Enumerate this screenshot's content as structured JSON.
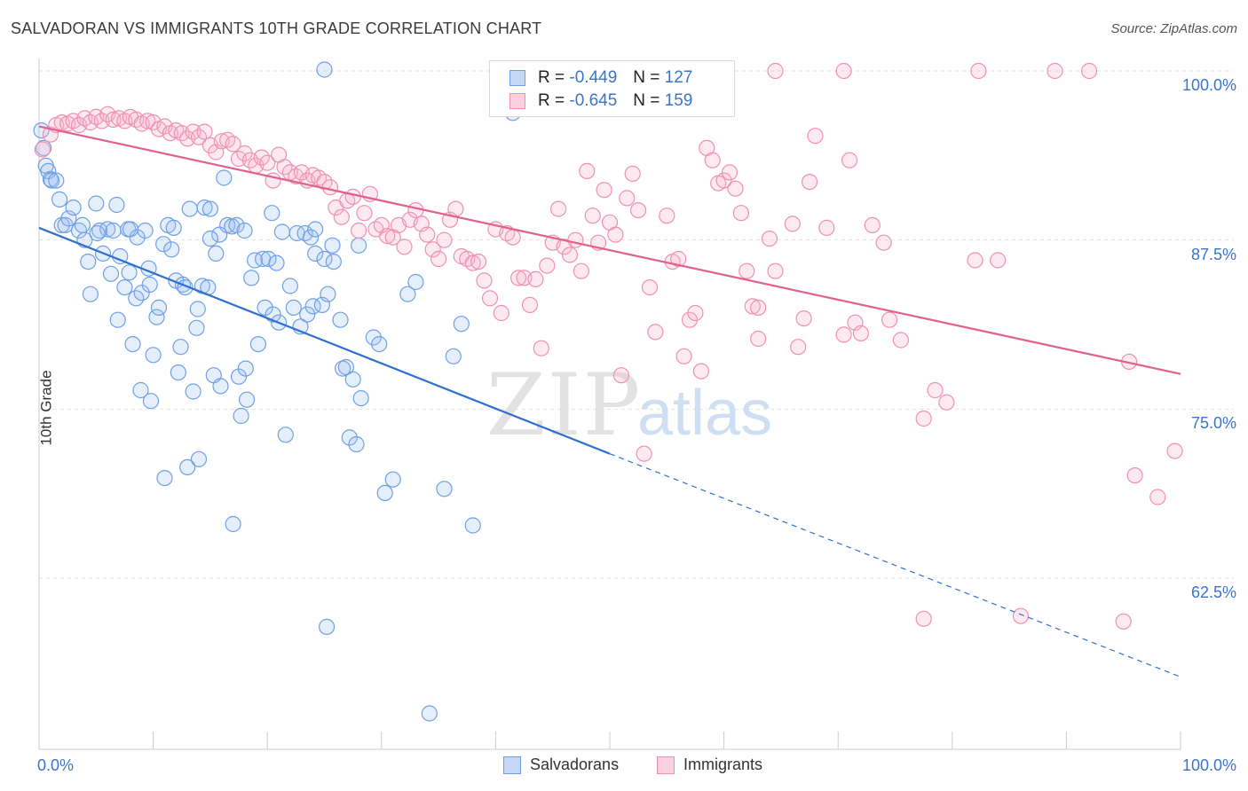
{
  "title": "SALVADORAN VS IMMIGRANTS 10TH GRADE CORRELATION CHART",
  "source": "Source: ZipAtlas.com",
  "watermark": {
    "zip": "ZIP",
    "atlas": "atlas"
  },
  "legend": {
    "rows": [
      {
        "r_label": "R =",
        "r_value": "-0.449",
        "n_label": "N =",
        "n_value": "127",
        "color": "#6fa0e6"
      },
      {
        "r_label": "R =",
        "r_value": "-0.645",
        "n_label": "N =",
        "n_value": "159",
        "color": "#f090b0"
      }
    ]
  },
  "bottom_legend": [
    {
      "label": "Salvadorans",
      "color": "#6fa0e6"
    },
    {
      "label": "Immigrants",
      "color": "#f090b0"
    }
  ],
  "chart_data": {
    "type": "scatter",
    "title": "SALVADORAN VS IMMIGRANTS 10TH GRADE CORRELATION CHART",
    "xlabel": "",
    "ylabel": "10th Grade",
    "xlim": [
      0,
      100
    ],
    "ylim": [
      52.0,
      101.5
    ],
    "x_tick_labels": [
      "0.0%",
      "100.0%"
    ],
    "y_ticks": [
      62.5,
      75.0,
      87.5,
      100.0
    ],
    "y_tick_labels": [
      "62.5%",
      "75.0%",
      "87.5%",
      "100.0%"
    ],
    "grid": true,
    "legend_position": "top-center",
    "series": [
      {
        "name": "Salvadorans",
        "color": "#6fa0e6",
        "trend": {
          "x": [
            0,
            50
          ],
          "y": [
            88.4,
            71.7
          ],
          "dashed_to": [
            100,
            55.2
          ]
        },
        "points": [
          [
            0.2,
            95.6
          ],
          [
            0.4,
            94.3
          ],
          [
            0.6,
            93.0
          ],
          [
            0.8,
            92.6
          ],
          [
            1.0,
            92.0
          ],
          [
            1.1,
            91.9
          ],
          [
            1.5,
            91.9
          ],
          [
            1.8,
            90.5
          ],
          [
            2.0,
            88.6
          ],
          [
            2.3,
            88.6
          ],
          [
            2.6,
            89.1
          ],
          [
            3.0,
            89.9
          ],
          [
            3.5,
            88.2
          ],
          [
            3.8,
            88.6
          ],
          [
            4.0,
            87.5
          ],
          [
            4.3,
            85.9
          ],
          [
            4.5,
            83.5
          ],
          [
            5.0,
            90.2
          ],
          [
            5.3,
            88.2
          ],
          [
            5.6,
            86.5
          ],
          [
            6.0,
            88.3
          ],
          [
            6.3,
            85.0
          ],
          [
            6.5,
            88.2
          ],
          [
            6.8,
            90.1
          ],
          [
            6.9,
            81.6
          ],
          [
            7.1,
            86.3
          ],
          [
            7.5,
            84.0
          ],
          [
            7.8,
            88.3
          ],
          [
            7.9,
            85.1
          ],
          [
            8.2,
            79.8
          ],
          [
            8.5,
            83.2
          ],
          [
            8.6,
            87.7
          ],
          [
            8.9,
            76.4
          ],
          [
            9.0,
            83.6
          ],
          [
            9.3,
            88.2
          ],
          [
            9.6,
            85.4
          ],
          [
            9.7,
            84.2
          ],
          [
            9.8,
            75.6
          ],
          [
            10.0,
            79.0
          ],
          [
            10.3,
            81.8
          ],
          [
            10.5,
            82.5
          ],
          [
            10.9,
            87.2
          ],
          [
            11.0,
            69.9
          ],
          [
            11.3,
            88.6
          ],
          [
            11.6,
            86.8
          ],
          [
            11.8,
            88.4
          ],
          [
            12.0,
            84.5
          ],
          [
            12.2,
            77.7
          ],
          [
            12.4,
            79.6
          ],
          [
            12.6,
            84.2
          ],
          [
            12.8,
            84.0
          ],
          [
            13.0,
            70.7
          ],
          [
            13.2,
            89.8
          ],
          [
            13.5,
            76.3
          ],
          [
            13.8,
            81.0
          ],
          [
            13.9,
            82.4
          ],
          [
            14.0,
            71.3
          ],
          [
            14.3,
            84.1
          ],
          [
            14.5,
            89.9
          ],
          [
            14.8,
            84.0
          ],
          [
            15.0,
            89.8
          ],
          [
            15.3,
            77.5
          ],
          [
            15.5,
            86.5
          ],
          [
            15.8,
            87.9
          ],
          [
            15.9,
            76.7
          ],
          [
            16.2,
            92.1
          ],
          [
            16.5,
            88.6
          ],
          [
            16.9,
            88.5
          ],
          [
            17.3,
            88.6
          ],
          [
            17.5,
            77.4
          ],
          [
            17.7,
            74.5
          ],
          [
            18.0,
            88.2
          ],
          [
            18.1,
            78.0
          ],
          [
            18.2,
            75.7
          ],
          [
            18.6,
            84.7
          ],
          [
            18.9,
            86.0
          ],
          [
            19.2,
            79.8
          ],
          [
            19.6,
            86.1
          ],
          [
            19.8,
            82.5
          ],
          [
            20.1,
            86.1
          ],
          [
            20.4,
            89.5
          ],
          [
            20.5,
            82.0
          ],
          [
            20.8,
            85.8
          ],
          [
            21.0,
            81.4
          ],
          [
            21.3,
            88.1
          ],
          [
            21.6,
            73.1
          ],
          [
            22.0,
            84.1
          ],
          [
            22.3,
            82.5
          ],
          [
            22.6,
            88.0
          ],
          [
            22.9,
            81.1
          ],
          [
            23.3,
            88.0
          ],
          [
            23.5,
            82.0
          ],
          [
            23.8,
            87.7
          ],
          [
            24.0,
            82.6
          ],
          [
            24.2,
            86.5
          ],
          [
            24.8,
            82.7
          ],
          [
            25.0,
            86.1
          ],
          [
            25.3,
            83.5
          ],
          [
            25.7,
            87.1
          ],
          [
            25.8,
            85.9
          ],
          [
            26.4,
            81.6
          ],
          [
            26.6,
            78.0
          ],
          [
            26.9,
            78.1
          ],
          [
            27.2,
            72.9
          ],
          [
            27.5,
            77.2
          ],
          [
            28.0,
            87.1
          ],
          [
            27.8,
            72.4
          ],
          [
            28.2,
            75.8
          ],
          [
            29.3,
            80.3
          ],
          [
            29.8,
            79.8
          ],
          [
            30.3,
            68.8
          ],
          [
            31.0,
            69.8
          ],
          [
            32.3,
            83.5
          ],
          [
            33.0,
            84.4
          ],
          [
            25.0,
            100.1
          ],
          [
            25.2,
            58.9
          ],
          [
            35.5,
            69.1
          ],
          [
            36.3,
            78.9
          ],
          [
            37.0,
            81.3
          ],
          [
            38.0,
            66.4
          ],
          [
            41.5,
            96.9
          ],
          [
            17.0,
            66.5
          ],
          [
            34.2,
            52.5
          ],
          [
            24.2,
            88.3
          ],
          [
            8.0,
            88.3
          ],
          [
            15.0,
            87.6
          ],
          [
            5.1,
            88.0
          ]
        ]
      },
      {
        "name": "Immigrants",
        "color": "#f090b0",
        "trend": {
          "x": [
            0,
            100
          ],
          "y": [
            95.9,
            77.6
          ]
        },
        "points": [
          [
            0.3,
            94.2
          ],
          [
            1.0,
            95.3
          ],
          [
            1.5,
            96.0
          ],
          [
            2.0,
            96.2
          ],
          [
            2.5,
            96.1
          ],
          [
            3.0,
            96.3
          ],
          [
            3.5,
            96.0
          ],
          [
            4.0,
            96.5
          ],
          [
            4.5,
            96.2
          ],
          [
            5.0,
            96.6
          ],
          [
            5.5,
            96.3
          ],
          [
            6.0,
            96.8
          ],
          [
            6.5,
            96.4
          ],
          [
            7.0,
            96.5
          ],
          [
            7.5,
            96.3
          ],
          [
            8.0,
            96.6
          ],
          [
            8.5,
            96.4
          ],
          [
            9.0,
            96.1
          ],
          [
            9.5,
            96.3
          ],
          [
            10.0,
            96.2
          ],
          [
            10.5,
            95.7
          ],
          [
            11.0,
            95.9
          ],
          [
            11.5,
            95.4
          ],
          [
            12.0,
            95.6
          ],
          [
            12.5,
            95.4
          ],
          [
            13.0,
            95.0
          ],
          [
            13.5,
            95.5
          ],
          [
            14.0,
            95.1
          ],
          [
            14.5,
            95.5
          ],
          [
            15.0,
            94.5
          ],
          [
            15.5,
            94.0
          ],
          [
            16.0,
            94.8
          ],
          [
            16.5,
            94.9
          ],
          [
            17.0,
            94.6
          ],
          [
            17.5,
            93.5
          ],
          [
            18.0,
            93.9
          ],
          [
            18.5,
            93.4
          ],
          [
            19.0,
            93.0
          ],
          [
            19.5,
            93.6
          ],
          [
            20.0,
            93.2
          ],
          [
            20.5,
            91.9
          ],
          [
            21.0,
            93.8
          ],
          [
            21.5,
            92.9
          ],
          [
            22.0,
            92.5
          ],
          [
            22.5,
            92.2
          ],
          [
            23.0,
            92.5
          ],
          [
            23.5,
            91.9
          ],
          [
            24.0,
            92.3
          ],
          [
            24.5,
            92.1
          ],
          [
            25.0,
            91.8
          ],
          [
            25.5,
            91.4
          ],
          [
            26.0,
            89.9
          ],
          [
            26.5,
            89.2
          ],
          [
            27.0,
            90.4
          ],
          [
            27.5,
            90.7
          ],
          [
            28.0,
            88.2
          ],
          [
            28.5,
            89.5
          ],
          [
            29.0,
            90.9
          ],
          [
            29.5,
            88.3
          ],
          [
            30.0,
            88.6
          ],
          [
            30.5,
            87.8
          ],
          [
            31.0,
            87.7
          ],
          [
            31.5,
            88.6
          ],
          [
            32.0,
            87.0
          ],
          [
            32.5,
            89.0
          ],
          [
            33.0,
            89.7
          ],
          [
            33.5,
            88.7
          ],
          [
            34.0,
            87.9
          ],
          [
            34.5,
            86.8
          ],
          [
            35.0,
            86.1
          ],
          [
            35.5,
            87.5
          ],
          [
            36.0,
            89.0
          ],
          [
            36.5,
            89.8
          ],
          [
            37.0,
            86.3
          ],
          [
            37.5,
            86.1
          ],
          [
            38.0,
            85.8
          ],
          [
            38.5,
            85.9
          ],
          [
            39.0,
            84.5
          ],
          [
            39.5,
            83.2
          ],
          [
            40.0,
            88.3
          ],
          [
            40.5,
            82.1
          ],
          [
            41.0,
            88.0
          ],
          [
            41.5,
            87.7
          ],
          [
            42.0,
            84.7
          ],
          [
            42.5,
            84.7
          ],
          [
            43.0,
            82.7
          ],
          [
            43.5,
            84.6
          ],
          [
            44.0,
            79.5
          ],
          [
            44.5,
            85.6
          ],
          [
            45.0,
            87.3
          ],
          [
            45.5,
            89.8
          ],
          [
            46.0,
            87.0
          ],
          [
            46.5,
            86.4
          ],
          [
            47.0,
            87.5
          ],
          [
            47.5,
            85.2
          ],
          [
            48.0,
            92.6
          ],
          [
            48.5,
            89.3
          ],
          [
            49.0,
            87.3
          ],
          [
            49.5,
            91.2
          ],
          [
            50.0,
            88.8
          ],
          [
            50.5,
            87.9
          ],
          [
            51.0,
            77.5
          ],
          [
            51.5,
            90.6
          ],
          [
            52.0,
            92.4
          ],
          [
            52.5,
            89.7
          ],
          [
            53.0,
            71.7
          ],
          [
            53.5,
            84.0
          ],
          [
            54.0,
            80.7
          ],
          [
            55.0,
            89.3
          ],
          [
            55.5,
            85.9
          ],
          [
            56.0,
            86.1
          ],
          [
            56.5,
            78.9
          ],
          [
            57.0,
            81.6
          ],
          [
            57.5,
            82.1
          ],
          [
            58.0,
            77.8
          ],
          [
            58.5,
            94.3
          ],
          [
            59.0,
            93.4
          ],
          [
            59.5,
            91.7
          ],
          [
            60.0,
            91.9
          ],
          [
            60.5,
            92.5
          ],
          [
            61.0,
            91.3
          ],
          [
            61.5,
            89.5
          ],
          [
            62.0,
            85.2
          ],
          [
            62.5,
            82.6
          ],
          [
            63.0,
            82.5
          ],
          [
            64.0,
            87.6
          ],
          [
            64.5,
            85.2
          ],
          [
            66.0,
            88.7
          ],
          [
            66.5,
            79.6
          ],
          [
            67.0,
            81.7
          ],
          [
            67.5,
            91.8
          ],
          [
            68.0,
            95.2
          ],
          [
            69.0,
            88.4
          ],
          [
            70.5,
            80.5
          ],
          [
            71.0,
            93.4
          ],
          [
            71.5,
            81.4
          ],
          [
            72.0,
            80.6
          ],
          [
            73.0,
            88.6
          ],
          [
            74.0,
            87.3
          ],
          [
            74.5,
            81.6
          ],
          [
            75.5,
            80.1
          ],
          [
            77.5,
            74.3
          ],
          [
            78.5,
            76.4
          ],
          [
            79.5,
            75.5
          ],
          [
            82.0,
            86.0
          ],
          [
            84.0,
            86.0
          ],
          [
            86.0,
            59.7
          ],
          [
            89.0,
            100.0
          ],
          [
            92.0,
            100.0
          ],
          [
            95.0,
            59.3
          ],
          [
            95.5,
            78.5
          ],
          [
            96.0,
            70.1
          ],
          [
            98.0,
            68.5
          ],
          [
            99.5,
            71.9
          ],
          [
            77.5,
            59.5
          ],
          [
            64.5,
            100.0
          ],
          [
            70.5,
            100.0
          ],
          [
            82.3,
            100.0
          ],
          [
            63.0,
            80.2
          ]
        ]
      }
    ]
  }
}
